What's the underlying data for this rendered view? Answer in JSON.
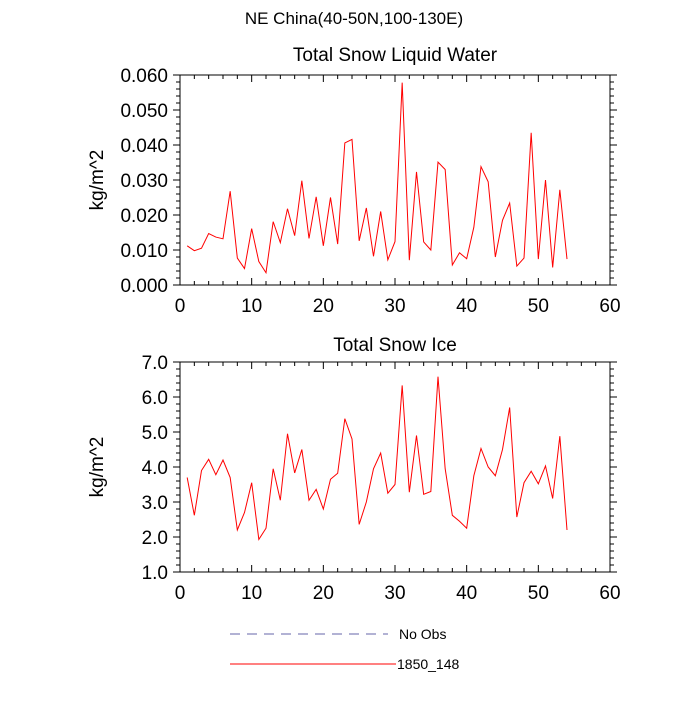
{
  "figure": {
    "suptitle": "NE China(40-50N,100-130E)"
  },
  "legend": {
    "placement": "bottom-center",
    "items": [
      {
        "label": "No Obs",
        "style": "dashed",
        "color": "#6666aa"
      },
      {
        "label": "1850_148",
        "style": "solid",
        "color": "#ff0000"
      }
    ]
  },
  "chart_data": [
    {
      "type": "line",
      "title": "Total Snow Liquid Water",
      "xlabel": "",
      "ylabel": "kg/m^2",
      "xlim": [
        0,
        60
      ],
      "ylim": [
        0,
        0.06
      ],
      "xticks": [
        0,
        10,
        20,
        30,
        40,
        50,
        60
      ],
      "xtick_labels": [
        "0",
        "10",
        "20",
        "30",
        "40",
        "50",
        "60"
      ],
      "yticks": [
        0,
        0.01,
        0.02,
        0.03,
        0.04,
        0.05,
        0.06
      ],
      "ytick_labels": [
        "0.000",
        "0.010",
        "0.020",
        "0.030",
        "0.040",
        "0.050",
        "0.060"
      ],
      "grid": false,
      "series": [
        {
          "name": "1850_148",
          "color": "#ff0000",
          "x": [
            1,
            2,
            3,
            4,
            5,
            6,
            7,
            8,
            9,
            10,
            11,
            12,
            13,
            14,
            15,
            16,
            17,
            18,
            19,
            20,
            21,
            22,
            23,
            24,
            25,
            26,
            27,
            28,
            29,
            30,
            31,
            32,
            33,
            34,
            35,
            36,
            37,
            38,
            39,
            40,
            41,
            42,
            43,
            44,
            45,
            46,
            47,
            48,
            49,
            50,
            51,
            52,
            53,
            54
          ],
          "y": [
            0.0112,
            0.0098,
            0.0105,
            0.0147,
            0.0137,
            0.0132,
            0.0268,
            0.0077,
            0.0047,
            0.0161,
            0.0067,
            0.0035,
            0.0181,
            0.0121,
            0.0218,
            0.0141,
            0.0298,
            0.0133,
            0.0252,
            0.0112,
            0.025,
            0.0117,
            0.0406,
            0.0416,
            0.0126,
            0.022,
            0.0082,
            0.021,
            0.0072,
            0.0124,
            0.0578,
            0.0071,
            0.0323,
            0.0123,
            0.01,
            0.0351,
            0.033,
            0.0057,
            0.0092,
            0.0075,
            0.0165,
            0.0338,
            0.0295,
            0.008,
            0.0185,
            0.0234,
            0.0054,
            0.0077,
            0.0435,
            0.0074,
            0.03,
            0.005,
            0.0272,
            0.0074
          ]
        }
      ]
    },
    {
      "type": "line",
      "title": "Total Snow Ice",
      "xlabel": "",
      "ylabel": "kg/m^2",
      "xlim": [
        0,
        60
      ],
      "ylim": [
        1,
        7
      ],
      "xticks": [
        0,
        10,
        20,
        30,
        40,
        50,
        60
      ],
      "xtick_labels": [
        "0",
        "10",
        "20",
        "30",
        "40",
        "50",
        "60"
      ],
      "yticks": [
        1,
        2,
        3,
        4,
        5,
        6,
        7
      ],
      "ytick_labels": [
        "1.0",
        "2.0",
        "3.0",
        "4.0",
        "5.0",
        "6.0",
        "7.0"
      ],
      "grid": false,
      "series": [
        {
          "name": "1850_148",
          "color": "#ff0000",
          "x": [
            1,
            2,
            3,
            4,
            5,
            6,
            7,
            8,
            9,
            10,
            11,
            12,
            13,
            14,
            15,
            16,
            17,
            18,
            19,
            20,
            21,
            22,
            23,
            24,
            25,
            26,
            27,
            28,
            29,
            30,
            31,
            32,
            33,
            34,
            35,
            36,
            37,
            38,
            39,
            40,
            41,
            42,
            43,
            44,
            45,
            46,
            47,
            48,
            49,
            50,
            51,
            52,
            53,
            54
          ],
          "y": [
            3.7,
            2.62,
            3.9,
            4.22,
            3.78,
            4.2,
            3.7,
            2.2,
            2.7,
            3.55,
            1.93,
            2.25,
            3.95,
            3.05,
            4.95,
            3.83,
            4.5,
            3.05,
            3.36,
            2.8,
            3.65,
            3.82,
            5.38,
            4.8,
            2.36,
            3.0,
            3.95,
            4.4,
            3.25,
            3.5,
            6.33,
            3.28,
            4.9,
            3.22,
            3.3,
            6.58,
            3.95,
            2.62,
            2.45,
            2.25,
            3.75,
            4.53,
            4.0,
            3.75,
            4.5,
            5.7,
            2.57,
            3.55,
            3.88,
            3.52,
            4.03,
            3.1,
            4.88,
            2.2
          ]
        }
      ]
    }
  ]
}
